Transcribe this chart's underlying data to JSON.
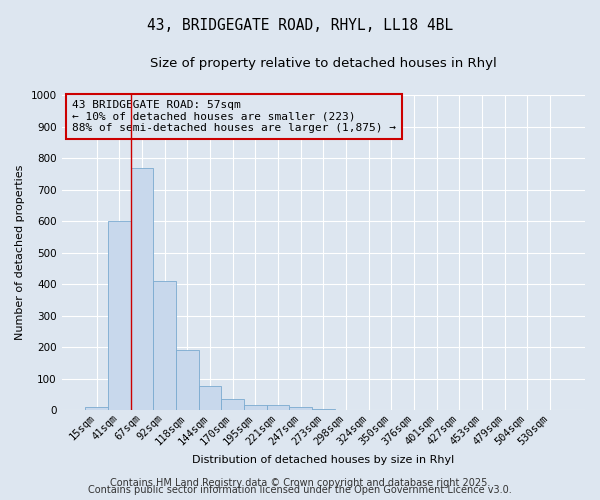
{
  "title1": "43, BRIDGEGATE ROAD, RHYL, LL18 4BL",
  "title2": "Size of property relative to detached houses in Rhyl",
  "xlabel": "Distribution of detached houses by size in Rhyl",
  "ylabel": "Number of detached properties",
  "bar_values": [
    12,
    600,
    768,
    410,
    193,
    78,
    36,
    17,
    16,
    9,
    5,
    0,
    0,
    0,
    0,
    0,
    0,
    0,
    0,
    0,
    0
  ],
  "bar_labels": [
    "15sqm",
    "41sqm",
    "67sqm",
    "92sqm",
    "118sqm",
    "144sqm",
    "170sqm",
    "195sqm",
    "221sqm",
    "247sqm",
    "273sqm",
    "298sqm",
    "324sqm",
    "350sqm",
    "376sqm",
    "401sqm",
    "427sqm",
    "453sqm",
    "479sqm",
    "504sqm",
    "530sqm"
  ],
  "bar_color": "#c8d8ec",
  "bar_edge_color": "#7aaad0",
  "background_color": "#dde6f0",
  "grid_color": "#ffffff",
  "annotation_box_color": "#cc0000",
  "annotation_line1": "43 BRIDGEGATE ROAD: 57sqm",
  "annotation_line2": "← 10% of detached houses are smaller (223)",
  "annotation_line3": "88% of semi-detached houses are larger (1,875) →",
  "vline_x": 1.5,
  "vline_color": "#cc0000",
  "ylim": [
    0,
    1000
  ],
  "yticks": [
    0,
    100,
    200,
    300,
    400,
    500,
    600,
    700,
    800,
    900,
    1000
  ],
  "footer1": "Contains HM Land Registry data © Crown copyright and database right 2025.",
  "footer2": "Contains public sector information licensed under the Open Government Licence v3.0.",
  "title_fontsize": 10.5,
  "subtitle_fontsize": 9.5,
  "annot_fontsize": 8,
  "footer_fontsize": 7,
  "axis_label_fontsize": 8,
  "tick_fontsize": 7.5
}
